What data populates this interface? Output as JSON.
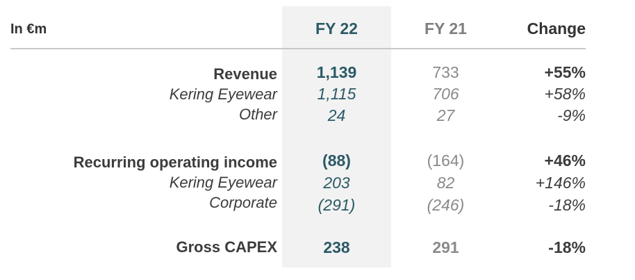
{
  "header": {
    "unit": "In €m",
    "fy22": "FY 22",
    "fy21": "FY 21",
    "change": "Change"
  },
  "rows": [
    {
      "label": "Revenue",
      "fy22": "1,139",
      "fy21": "733",
      "change": "+55%",
      "kind": "main"
    },
    {
      "label": "Kering Eyewear",
      "fy22": "1,115",
      "fy21": "706",
      "change": "+58%",
      "kind": "sub"
    },
    {
      "label": "Other",
      "fy22": "24",
      "fy21": "27",
      "change": "-9%",
      "kind": "sub"
    },
    {
      "label": "Recurring operating income",
      "fy22": "(88)",
      "fy21": "(164)",
      "change": "+46%",
      "kind": "main"
    },
    {
      "label": "Kering Eyewear",
      "fy22": "203",
      "fy21": "82",
      "change": "+146%",
      "kind": "sub"
    },
    {
      "label": "Corporate",
      "fy22": "(291)",
      "fy21": "(246)",
      "change": "-18%",
      "kind": "sub"
    },
    {
      "label": "Gross CAPEX",
      "fy22": "238",
      "fy21": "291",
      "change": "-18%",
      "kind": "main"
    }
  ],
  "colors": {
    "fy22_text": "#2b5a66",
    "fy21_text": "#8a8a8a",
    "highlight_band": "#f2f2f2",
    "label_text": "#3c3c3c"
  }
}
